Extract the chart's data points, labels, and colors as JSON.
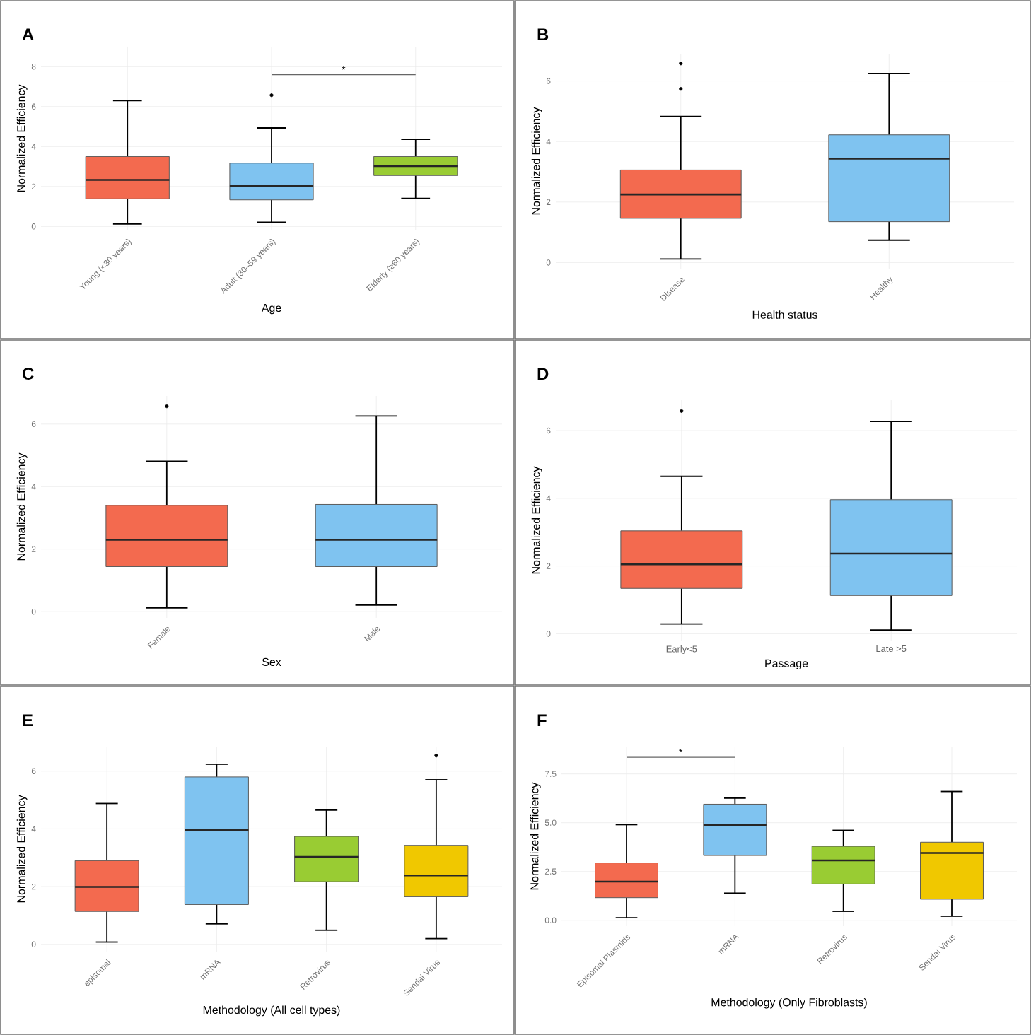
{
  "chart_data": [
    {
      "type": "box",
      "title": "A",
      "xlabel": "Age",
      "ylabel": "Normalized Efficiency",
      "categories": [
        "Young (<30 years)",
        "Adult (30–59 years)",
        "Elderly (≥60 years)"
      ],
      "colors": [
        "#f36a4f",
        "#7fc3f0",
        "#99cc33"
      ],
      "boxes": [
        {
          "low": 0.12,
          "q1": 1.38,
          "median": 2.33,
          "q3": 3.5,
          "high": 6.3
        },
        {
          "low": 0.21,
          "q1": 1.33,
          "median": 2.02,
          "q3": 3.17,
          "high": 4.93,
          "outliers": [
            6.57
          ]
        },
        {
          "low": 1.4,
          "q1": 2.55,
          "median": 3.02,
          "q3": 3.5,
          "high": 4.36
        }
      ],
      "ylim": [
        -0.2,
        9
      ],
      "yticks": [
        0,
        2,
        4,
        6,
        8
      ],
      "grid": true,
      "annotations": [
        "*"
      ]
    },
    {
      "type": "box",
      "title": "B",
      "xlabel": "Health status",
      "ylabel": "Normalized Efficiency",
      "categories": [
        "Disease",
        "Healthy"
      ],
      "colors": [
        "#f36a4f",
        "#7fc3f0"
      ],
      "boxes": [
        {
          "low": 0.12,
          "q1": 1.46,
          "median": 2.25,
          "q3": 3.06,
          "high": 4.83,
          "outliers": [
            5.74,
            6.58
          ]
        },
        {
          "low": 0.74,
          "q1": 1.35,
          "median": 3.43,
          "q3": 4.22,
          "high": 6.25
        }
      ],
      "ylim": [
        -0.2,
        6.9
      ],
      "yticks": [
        0,
        2,
        4,
        6
      ],
      "grid": true
    },
    {
      "type": "box",
      "title": "C",
      "xlabel": "Sex",
      "ylabel": "Normalized Efficiency",
      "categories": [
        "Female",
        "Male"
      ],
      "colors": [
        "#f36a4f",
        "#7fc3f0"
      ],
      "boxes": [
        {
          "low": 0.12,
          "q1": 1.44,
          "median": 2.3,
          "q3": 3.4,
          "high": 4.81,
          "outliers": [
            6.57
          ]
        },
        {
          "low": 0.21,
          "q1": 1.44,
          "median": 2.3,
          "q3": 3.43,
          "high": 6.26
        }
      ],
      "ylim": [
        -0.2,
        6.9
      ],
      "yticks": [
        0,
        2,
        4,
        6
      ],
      "grid": true
    },
    {
      "type": "box",
      "title": "D",
      "xlabel": "Passage",
      "ylabel": "Normalized Efficiency",
      "categories": [
        "Early<5",
        "Late >5"
      ],
      "colors": [
        "#f36a4f",
        "#7fc3f0"
      ],
      "boxes": [
        {
          "low": 0.29,
          "q1": 1.34,
          "median": 2.05,
          "q3": 3.04,
          "high": 4.65,
          "outliers": [
            6.58
          ]
        },
        {
          "low": 0.11,
          "q1": 1.13,
          "median": 2.37,
          "q3": 3.96,
          "high": 6.27
        }
      ],
      "ylim": [
        -0.2,
        6.9
      ],
      "yticks": [
        0,
        2,
        4,
        6
      ],
      "grid": true
    },
    {
      "type": "box",
      "title": "E",
      "xlabel": "Methodology (All cell types)",
      "ylabel": "Normalized Efficiency",
      "categories": [
        "episomal",
        "mRNA",
        "Retrovirus",
        "Sendai Virus"
      ],
      "colors": [
        "#f36a4f",
        "#7fc3f0",
        "#99cc33",
        "#f0c800"
      ],
      "boxes": [
        {
          "low": 0.08,
          "q1": 1.14,
          "median": 1.99,
          "q3": 2.9,
          "high": 4.88
        },
        {
          "low": 0.71,
          "q1": 1.38,
          "median": 3.97,
          "q3": 5.8,
          "high": 6.24
        },
        {
          "low": 0.49,
          "q1": 2.17,
          "median": 3.03,
          "q3": 3.74,
          "high": 4.65
        },
        {
          "low": 0.2,
          "q1": 1.65,
          "median": 2.39,
          "q3": 3.43,
          "high": 5.7,
          "outliers": [
            6.54
          ]
        }
      ],
      "ylim": [
        -0.25,
        6.85
      ],
      "yticks": [
        0,
        2,
        4,
        6
      ],
      "grid": true
    },
    {
      "type": "box",
      "title": "F",
      "xlabel": "Methodology (Only Fibroblasts)",
      "ylabel": "Normalized Efficiency",
      "categories": [
        "Episomal Plasmids",
        "mRNA",
        "Retrovirus",
        "Sendai Virus"
      ],
      "colors": [
        "#f36a4f",
        "#7fc3f0",
        "#99cc33",
        "#f0c800"
      ],
      "boxes": [
        {
          "low": 0.13,
          "q1": 1.16,
          "median": 1.98,
          "q3": 2.94,
          "high": 4.9
        },
        {
          "low": 1.39,
          "q1": 3.32,
          "median": 4.87,
          "q3": 5.95,
          "high": 6.26
        },
        {
          "low": 0.46,
          "q1": 1.86,
          "median": 3.07,
          "q3": 3.79,
          "high": 4.61
        },
        {
          "low": 0.21,
          "q1": 1.08,
          "median": 3.45,
          "q3": 4.0,
          "high": 6.6
        }
      ],
      "ylim": [
        -0.3,
        8.9
      ],
      "yticks": [
        {
          "value": 0,
          "label": "0.0"
        },
        {
          "value": 2.5,
          "label": "2.5"
        },
        {
          "value": 5,
          "label": "5.0"
        },
        {
          "value": 7.5,
          "label": "7.5"
        }
      ],
      "grid": true,
      "annotations": [
        "*"
      ]
    }
  ]
}
